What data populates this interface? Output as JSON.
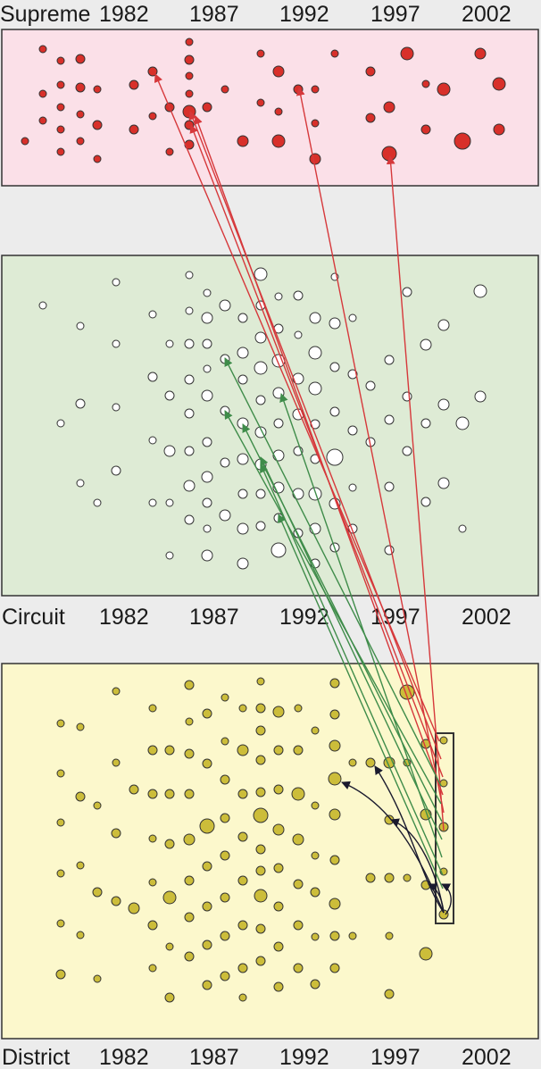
{
  "labels": {
    "supreme": "Supreme",
    "circuit": "Circuit",
    "district": "District"
  },
  "years": [
    "1982",
    "1987",
    "1992",
    "1997",
    "2002"
  ],
  "colors": {
    "supreme_fill": "#fbe0e8",
    "circuit_fill": "#deebd5",
    "district_fill": "#fcf8cc",
    "supreme_node": "#d8302a",
    "circuit_node": "#ffffff",
    "district_node": "#ccbd3a",
    "red_arrow": "#d6383b",
    "green_arrow": "#3f8c4a",
    "black_arrow": "#1a1a2e"
  }
}
